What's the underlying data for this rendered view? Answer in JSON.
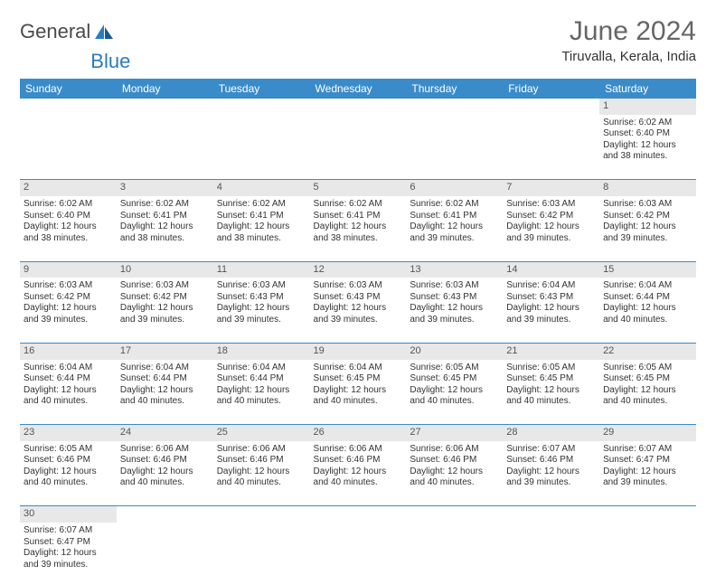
{
  "logo": {
    "text_a": "General",
    "text_b": "Blue",
    "accent_color": "#2b7bbf"
  },
  "title": "June 2024",
  "location": "Tiruvalla, Kerala, India",
  "header_bg": "#3a8bc9",
  "daynum_bg": "#e8e8e8",
  "days_of_week": [
    "Sunday",
    "Monday",
    "Tuesday",
    "Wednesday",
    "Thursday",
    "Friday",
    "Saturday"
  ],
  "weeks": [
    {
      "nums": [
        "",
        "",
        "",
        "",
        "",
        "",
        "1"
      ],
      "cells": [
        null,
        null,
        null,
        null,
        null,
        null,
        {
          "sr": "Sunrise: 6:02 AM",
          "ss": "Sunset: 6:40 PM",
          "d1": "Daylight: 12 hours",
          "d2": "and 38 minutes."
        }
      ]
    },
    {
      "nums": [
        "2",
        "3",
        "4",
        "5",
        "6",
        "7",
        "8"
      ],
      "cells": [
        {
          "sr": "Sunrise: 6:02 AM",
          "ss": "Sunset: 6:40 PM",
          "d1": "Daylight: 12 hours",
          "d2": "and 38 minutes."
        },
        {
          "sr": "Sunrise: 6:02 AM",
          "ss": "Sunset: 6:41 PM",
          "d1": "Daylight: 12 hours",
          "d2": "and 38 minutes."
        },
        {
          "sr": "Sunrise: 6:02 AM",
          "ss": "Sunset: 6:41 PM",
          "d1": "Daylight: 12 hours",
          "d2": "and 38 minutes."
        },
        {
          "sr": "Sunrise: 6:02 AM",
          "ss": "Sunset: 6:41 PM",
          "d1": "Daylight: 12 hours",
          "d2": "and 38 minutes."
        },
        {
          "sr": "Sunrise: 6:02 AM",
          "ss": "Sunset: 6:41 PM",
          "d1": "Daylight: 12 hours",
          "d2": "and 39 minutes."
        },
        {
          "sr": "Sunrise: 6:03 AM",
          "ss": "Sunset: 6:42 PM",
          "d1": "Daylight: 12 hours",
          "d2": "and 39 minutes."
        },
        {
          "sr": "Sunrise: 6:03 AM",
          "ss": "Sunset: 6:42 PM",
          "d1": "Daylight: 12 hours",
          "d2": "and 39 minutes."
        }
      ]
    },
    {
      "nums": [
        "9",
        "10",
        "11",
        "12",
        "13",
        "14",
        "15"
      ],
      "cells": [
        {
          "sr": "Sunrise: 6:03 AM",
          "ss": "Sunset: 6:42 PM",
          "d1": "Daylight: 12 hours",
          "d2": "and 39 minutes."
        },
        {
          "sr": "Sunrise: 6:03 AM",
          "ss": "Sunset: 6:42 PM",
          "d1": "Daylight: 12 hours",
          "d2": "and 39 minutes."
        },
        {
          "sr": "Sunrise: 6:03 AM",
          "ss": "Sunset: 6:43 PM",
          "d1": "Daylight: 12 hours",
          "d2": "and 39 minutes."
        },
        {
          "sr": "Sunrise: 6:03 AM",
          "ss": "Sunset: 6:43 PM",
          "d1": "Daylight: 12 hours",
          "d2": "and 39 minutes."
        },
        {
          "sr": "Sunrise: 6:03 AM",
          "ss": "Sunset: 6:43 PM",
          "d1": "Daylight: 12 hours",
          "d2": "and 39 minutes."
        },
        {
          "sr": "Sunrise: 6:04 AM",
          "ss": "Sunset: 6:43 PM",
          "d1": "Daylight: 12 hours",
          "d2": "and 39 minutes."
        },
        {
          "sr": "Sunrise: 6:04 AM",
          "ss": "Sunset: 6:44 PM",
          "d1": "Daylight: 12 hours",
          "d2": "and 40 minutes."
        }
      ]
    },
    {
      "nums": [
        "16",
        "17",
        "18",
        "19",
        "20",
        "21",
        "22"
      ],
      "cells": [
        {
          "sr": "Sunrise: 6:04 AM",
          "ss": "Sunset: 6:44 PM",
          "d1": "Daylight: 12 hours",
          "d2": "and 40 minutes."
        },
        {
          "sr": "Sunrise: 6:04 AM",
          "ss": "Sunset: 6:44 PM",
          "d1": "Daylight: 12 hours",
          "d2": "and 40 minutes."
        },
        {
          "sr": "Sunrise: 6:04 AM",
          "ss": "Sunset: 6:44 PM",
          "d1": "Daylight: 12 hours",
          "d2": "and 40 minutes."
        },
        {
          "sr": "Sunrise: 6:04 AM",
          "ss": "Sunset: 6:45 PM",
          "d1": "Daylight: 12 hours",
          "d2": "and 40 minutes."
        },
        {
          "sr": "Sunrise: 6:05 AM",
          "ss": "Sunset: 6:45 PM",
          "d1": "Daylight: 12 hours",
          "d2": "and 40 minutes."
        },
        {
          "sr": "Sunrise: 6:05 AM",
          "ss": "Sunset: 6:45 PM",
          "d1": "Daylight: 12 hours",
          "d2": "and 40 minutes."
        },
        {
          "sr": "Sunrise: 6:05 AM",
          "ss": "Sunset: 6:45 PM",
          "d1": "Daylight: 12 hours",
          "d2": "and 40 minutes."
        }
      ]
    },
    {
      "nums": [
        "23",
        "24",
        "25",
        "26",
        "27",
        "28",
        "29"
      ],
      "cells": [
        {
          "sr": "Sunrise: 6:05 AM",
          "ss": "Sunset: 6:46 PM",
          "d1": "Daylight: 12 hours",
          "d2": "and 40 minutes."
        },
        {
          "sr": "Sunrise: 6:06 AM",
          "ss": "Sunset: 6:46 PM",
          "d1": "Daylight: 12 hours",
          "d2": "and 40 minutes."
        },
        {
          "sr": "Sunrise: 6:06 AM",
          "ss": "Sunset: 6:46 PM",
          "d1": "Daylight: 12 hours",
          "d2": "and 40 minutes."
        },
        {
          "sr": "Sunrise: 6:06 AM",
          "ss": "Sunset: 6:46 PM",
          "d1": "Daylight: 12 hours",
          "d2": "and 40 minutes."
        },
        {
          "sr": "Sunrise: 6:06 AM",
          "ss": "Sunset: 6:46 PM",
          "d1": "Daylight: 12 hours",
          "d2": "and 40 minutes."
        },
        {
          "sr": "Sunrise: 6:07 AM",
          "ss": "Sunset: 6:46 PM",
          "d1": "Daylight: 12 hours",
          "d2": "and 39 minutes."
        },
        {
          "sr": "Sunrise: 6:07 AM",
          "ss": "Sunset: 6:47 PM",
          "d1": "Daylight: 12 hours",
          "d2": "and 39 minutes."
        }
      ]
    },
    {
      "nums": [
        "30",
        "",
        "",
        "",
        "",
        "",
        ""
      ],
      "cells": [
        {
          "sr": "Sunrise: 6:07 AM",
          "ss": "Sunset: 6:47 PM",
          "d1": "Daylight: 12 hours",
          "d2": "and 39 minutes."
        },
        null,
        null,
        null,
        null,
        null,
        null
      ],
      "last": true
    }
  ]
}
